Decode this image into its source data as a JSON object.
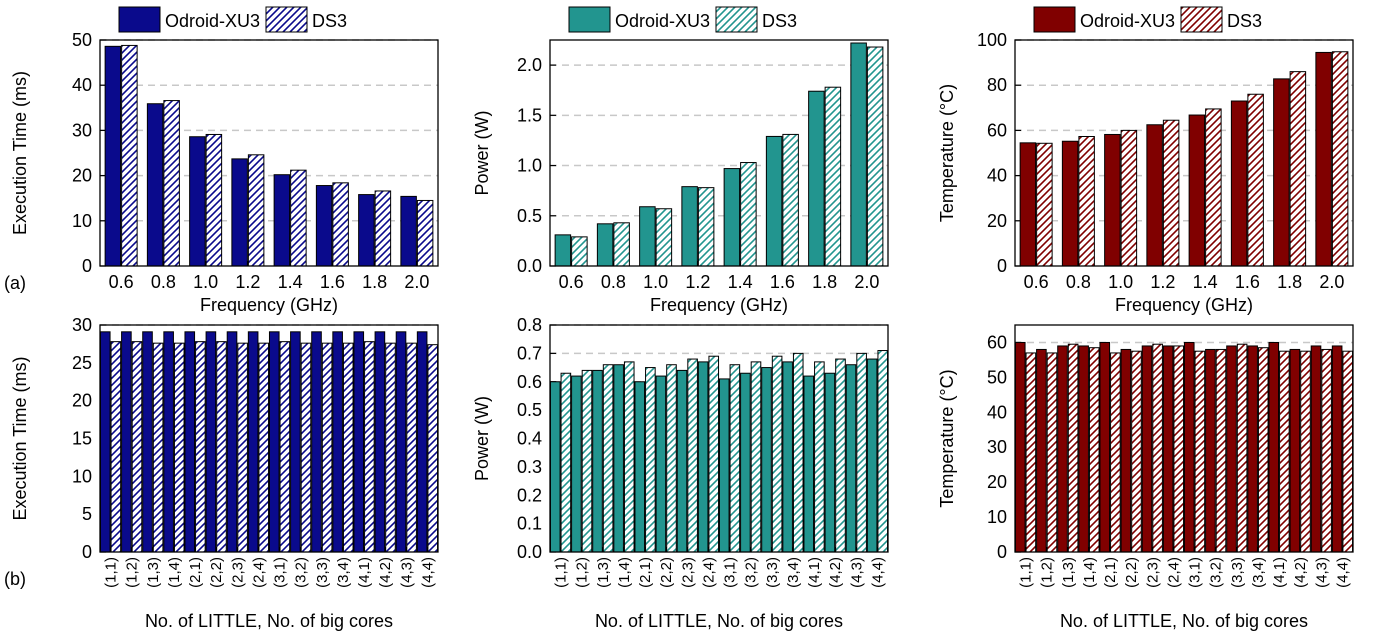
{
  "row_labels": [
    "(a)",
    "(b)"
  ],
  "legend": {
    "label1": "Odroid-XU3",
    "label2": "DS3"
  },
  "colors": {
    "blue": "#0a0a8c",
    "teal": "#22958f",
    "red": "#800000"
  },
  "chart_data": [
    {
      "type": "bar",
      "row": 0,
      "col": 0,
      "color": "blue",
      "ylabel": "Execution Time (ms)",
      "xlabel": "Frequency (GHz)",
      "categories": [
        "0.6",
        "0.8",
        "1.0",
        "1.2",
        "1.4",
        "1.6",
        "1.8",
        "2.0"
      ],
      "series": [
        {
          "name": "Odroid-XU3",
          "values": [
            48.6,
            35.9,
            28.6,
            23.7,
            20.2,
            17.8,
            15.8,
            15.4
          ]
        },
        {
          "name": "DS3",
          "values": [
            48.8,
            36.6,
            29.1,
            24.6,
            21.2,
            18.4,
            16.6,
            14.5
          ]
        }
      ],
      "ylim": [
        0,
        50
      ],
      "yticks": [
        "0",
        "10",
        "20",
        "30",
        "40",
        "50"
      ],
      "grid": "horizontal dashed",
      "legend_position": "top"
    },
    {
      "type": "bar",
      "row": 0,
      "col": 1,
      "color": "teal",
      "ylabel": "Power (W)",
      "xlabel": "Frequency (GHz)",
      "categories": [
        "0.6",
        "0.8",
        "1.0",
        "1.2",
        "1.4",
        "1.6",
        "1.8",
        "2.0"
      ],
      "series": [
        {
          "name": "Odroid-XU3",
          "values": [
            0.31,
            0.42,
            0.59,
            0.79,
            0.97,
            1.29,
            1.74,
            2.22
          ]
        },
        {
          "name": "DS3",
          "values": [
            0.29,
            0.43,
            0.57,
            0.78,
            1.03,
            1.31,
            1.78,
            2.18
          ]
        }
      ],
      "ylim": [
        0,
        2.25
      ],
      "yticks": [
        "0.0",
        "0.5",
        "1.0",
        "1.5",
        "2.0"
      ],
      "grid": "horizontal dashed",
      "legend_position": "top"
    },
    {
      "type": "bar",
      "row": 0,
      "col": 2,
      "color": "red",
      "ylabel": "Temperature (°C)",
      "xlabel": "Frequency (GHz)",
      "categories": [
        "0.6",
        "0.8",
        "1.0",
        "1.2",
        "1.4",
        "1.6",
        "1.8",
        "2.0"
      ],
      "series": [
        {
          "name": "Odroid-XU3",
          "values": [
            54.5,
            55.2,
            58.2,
            62.5,
            66.8,
            73.0,
            82.8,
            94.5
          ]
        },
        {
          "name": "DS3",
          "values": [
            54.3,
            57.3,
            60.0,
            64.5,
            69.5,
            76.0,
            86.0,
            94.8
          ]
        }
      ],
      "ylim": [
        0,
        100
      ],
      "yticks": [
        "0",
        "20",
        "40",
        "60",
        "80",
        "100"
      ],
      "grid": "horizontal dashed",
      "legend_position": "top"
    },
    {
      "type": "bar",
      "row": 1,
      "col": 0,
      "color": "blue",
      "ylabel": "Execution Time (ms)",
      "xlabel": "No. of LITTLE, No. of big cores",
      "categories": [
        "(1,1)",
        "(1,2)",
        "(1,3)",
        "(1,4)",
        "(2,1)",
        "(2,2)",
        "(2,3)",
        "(2,4)",
        "(3,1)",
        "(3,2)",
        "(3,3)",
        "(3,4)",
        "(4,1)",
        "(4,2)",
        "(4,3)",
        "(4,4)"
      ],
      "series": [
        {
          "name": "Odroid-XU3",
          "values": [
            29.1,
            29.1,
            29.1,
            29.1,
            29.1,
            29.1,
            29.1,
            29.1,
            29.1,
            29.1,
            29.1,
            29.1,
            29.1,
            29.1,
            29.1,
            29.1
          ]
        },
        {
          "name": "DS3",
          "values": [
            27.8,
            27.8,
            27.6,
            27.6,
            27.8,
            27.8,
            27.6,
            27.6,
            27.8,
            27.6,
            27.6,
            27.6,
            27.8,
            27.6,
            27.6,
            27.4
          ]
        }
      ],
      "ylim": [
        0,
        30
      ],
      "yticks": [
        "0",
        "5",
        "10",
        "15",
        "20",
        "25",
        "30"
      ],
      "grid": "horizontal dashed"
    },
    {
      "type": "bar",
      "row": 1,
      "col": 1,
      "color": "teal",
      "ylabel": "Power (W)",
      "xlabel": "No. of LITTLE, No. of big cores",
      "categories": [
        "(1,1)",
        "(1,2)",
        "(1,3)",
        "(1,4)",
        "(2,1)",
        "(2,2)",
        "(2,3)",
        "(2,4)",
        "(3,1)",
        "(3,2)",
        "(3,3)",
        "(3,4)",
        "(4,1)",
        "(4,2)",
        "(4,3)",
        "(4,4)"
      ],
      "series": [
        {
          "name": "Odroid-XU3",
          "values": [
            0.6,
            0.62,
            0.64,
            0.66,
            0.6,
            0.62,
            0.64,
            0.67,
            0.61,
            0.63,
            0.65,
            0.67,
            0.62,
            0.63,
            0.66,
            0.68
          ]
        },
        {
          "name": "DS3",
          "values": [
            0.63,
            0.64,
            0.66,
            0.67,
            0.65,
            0.66,
            0.68,
            0.69,
            0.66,
            0.67,
            0.69,
            0.7,
            0.67,
            0.68,
            0.7,
            0.71
          ]
        }
      ],
      "ylim": [
        0,
        0.8
      ],
      "yticks": [
        "0.0",
        "0.1",
        "0.2",
        "0.3",
        "0.4",
        "0.5",
        "0.6",
        "0.7",
        "0.8"
      ],
      "grid": "horizontal dashed"
    },
    {
      "type": "bar",
      "row": 1,
      "col": 2,
      "color": "red",
      "ylabel": "Temperature (°C)",
      "xlabel": "No. of LITTLE, No. of big cores",
      "categories": [
        "(1,1)",
        "(1,2)",
        "(1,3)",
        "(1,4)",
        "(2,1)",
        "(2,2)",
        "(2,3)",
        "(2,4)",
        "(3,1)",
        "(3,2)",
        "(3,3)",
        "(3,4)",
        "(4,1)",
        "(4,2)",
        "(4,3)",
        "(4,4)"
      ],
      "series": [
        {
          "name": "Odroid-XU3",
          "values": [
            60.0,
            58.0,
            59.0,
            59.0,
            60.0,
            58.0,
            59.0,
            59.0,
            60.0,
            58.0,
            59.0,
            59.0,
            60.0,
            58.0,
            59.0,
            59.0
          ]
        },
        {
          "name": "DS3",
          "values": [
            57.0,
            57.0,
            59.5,
            58.5,
            57.0,
            57.5,
            59.5,
            59.0,
            57.5,
            58.0,
            59.5,
            58.5,
            57.5,
            57.5,
            58.0,
            57.5
          ]
        }
      ],
      "ylim": [
        0,
        65
      ],
      "yticks": [
        "0",
        "10",
        "20",
        "30",
        "40",
        "50",
        "60"
      ],
      "grid": "horizontal dashed"
    }
  ]
}
